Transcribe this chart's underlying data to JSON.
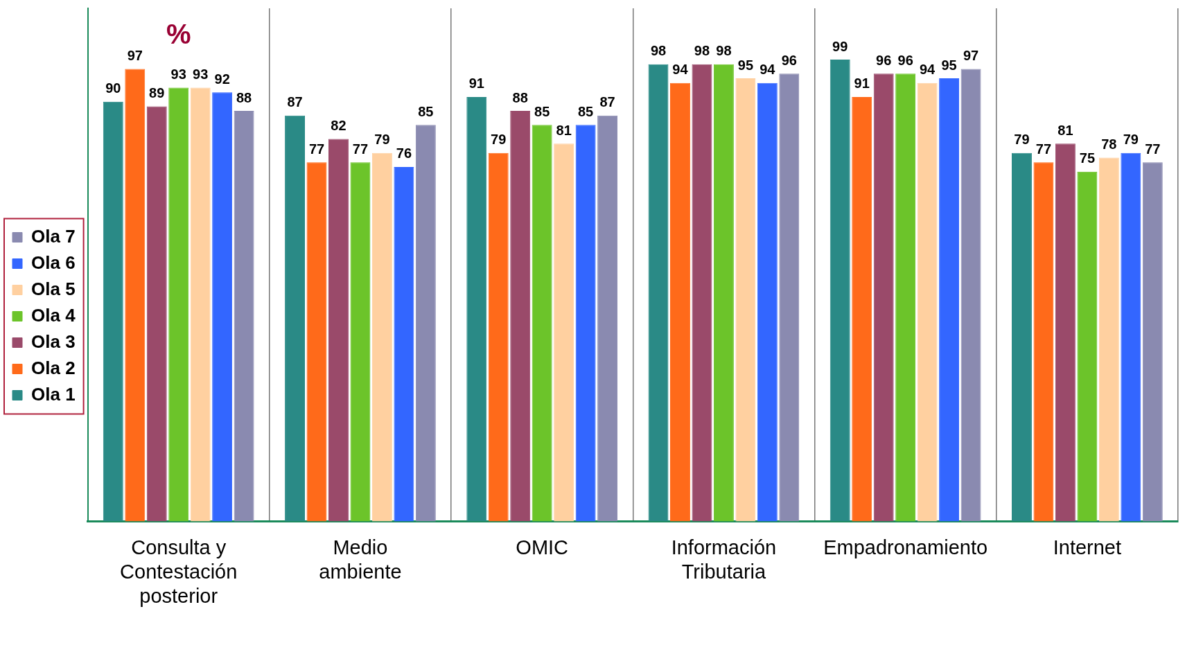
{
  "chart_data": {
    "type": "bar",
    "title": "%",
    "categories": [
      "Consulta y Contestación posterior",
      "Medio ambiente",
      "OMIC",
      "Información Tributaria",
      "Empadronamiento",
      "Internet"
    ],
    "series": [
      {
        "name": "Ola 1",
        "color": "#2a8a86",
        "values": [
          90,
          87,
          91,
          98,
          99,
          79
        ]
      },
      {
        "name": "Ola 2",
        "color": "#ff6a1a",
        "values": [
          97,
          77,
          79,
          94,
          91,
          77
        ]
      },
      {
        "name": "Ola 3",
        "color": "#9a4a6a",
        "values": [
          89,
          82,
          88,
          98,
          96,
          81
        ]
      },
      {
        "name": "Ola 4",
        "color": "#6cc42a",
        "values": [
          93,
          77,
          85,
          98,
          96,
          75
        ]
      },
      {
        "name": "Ola 5",
        "color": "#ffd0a0",
        "values": [
          93,
          79,
          81,
          95,
          94,
          78
        ]
      },
      {
        "name": "Ola 6",
        "color": "#3366ff",
        "values": [
          92,
          76,
          85,
          94,
          95,
          79
        ]
      },
      {
        "name": "Ola 7",
        "color": "#8a8ab0",
        "values": [
          88,
          85,
          87,
          96,
          97,
          77
        ]
      }
    ],
    "ylim": [
      0,
      110
    ],
    "data_labels": true,
    "grid": "x",
    "legend": "left",
    "tick_labels": "x"
  }
}
